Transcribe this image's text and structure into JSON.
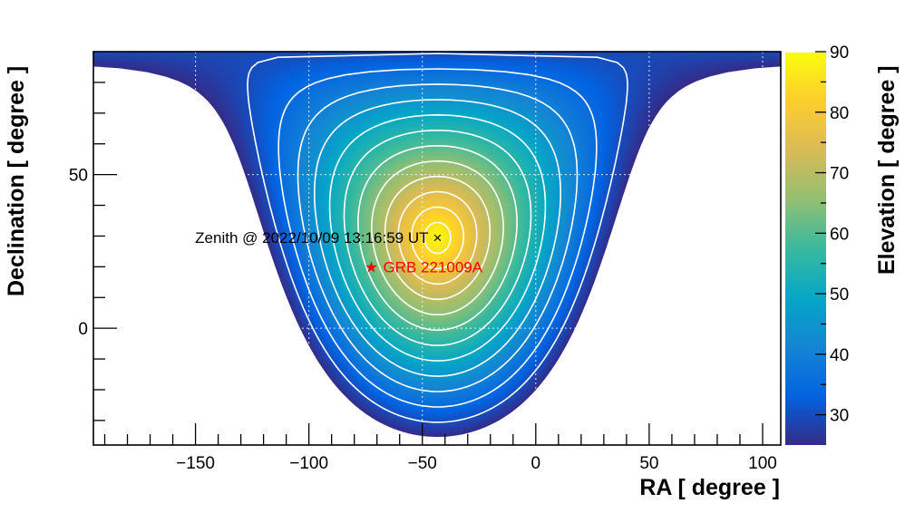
{
  "chart_data": {
    "type": "heatmap",
    "title": "",
    "xlabel": "RA [ degree ]",
    "ylabel": "Declination [ degree ]",
    "zlabel": "Elevation [ degree ]",
    "xlim": [
      -195,
      108
    ],
    "ylim": [
      -38,
      90
    ],
    "zlim": [
      25,
      90
    ],
    "x_ticks": [
      -150,
      -100,
      -50,
      0,
      50,
      100
    ],
    "y_ticks": [
      0,
      50
    ],
    "z_ticks": [
      30,
      40,
      50,
      60,
      70,
      80,
      90
    ],
    "grid": true,
    "colormap": "parula",
    "contour_levels": [
      25,
      30,
      35,
      40,
      45,
      50,
      55,
      60,
      65,
      70,
      75,
      80,
      85
    ],
    "zenith": {
      "ra": -43.3,
      "dec": 29.4,
      "label": "Zenith @ 2022/10/09 13:16:59 UT",
      "marker": "×"
    },
    "source": {
      "ra": -72.5,
      "dec": 19.8,
      "label": "GRB 221009A",
      "marker": "★",
      "color": "#ff0000"
    },
    "colors": {
      "contour": "#ffffff",
      "source": "#ff0000",
      "axis": "#000000"
    }
  }
}
